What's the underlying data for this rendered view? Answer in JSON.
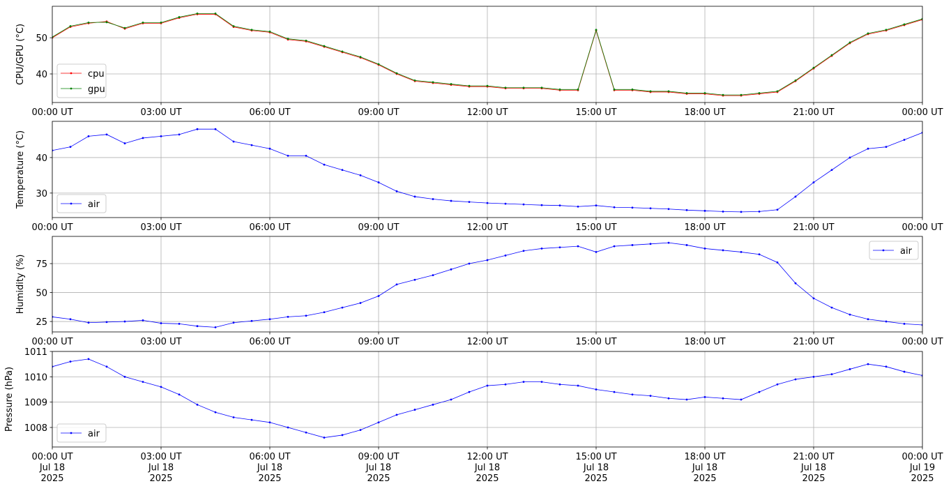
{
  "chart_data": [
    {
      "type": "line",
      "ylabel": "CPU/GPU (°C)",
      "legend": "lower left",
      "grid": true,
      "xlim": [
        0,
        24
      ],
      "ylim": [
        32.1,
        58.7
      ],
      "yticks": [
        40,
        50
      ],
      "xticks": [
        {
          "value": 0,
          "label": "00:00 UT"
        },
        {
          "value": 3,
          "label": "03:00 UT"
        },
        {
          "value": 6,
          "label": "06:00 UT"
        },
        {
          "value": 9,
          "label": "09:00 UT"
        },
        {
          "value": 12,
          "label": "12:00 UT"
        },
        {
          "value": 15,
          "label": "15:00 UT"
        },
        {
          "value": 18,
          "label": "18:00 UT"
        },
        {
          "value": 21,
          "label": "21:00 UT"
        },
        {
          "value": 24,
          "label": "00:00 UT"
        }
      ],
      "x": [
        0,
        0.5,
        1,
        1.5,
        2,
        2.5,
        3,
        3.5,
        4,
        4.5,
        5,
        5.5,
        6,
        6.5,
        7,
        7.5,
        8,
        8.5,
        9,
        9.5,
        10,
        10.5,
        11,
        11.5,
        12,
        12.5,
        13,
        13.5,
        14,
        14.5,
        15,
        15.5,
        16,
        16.5,
        17,
        17.5,
        18,
        18.5,
        19,
        19.5,
        20,
        20.5,
        21,
        21.5,
        22,
        22.5,
        23,
        23.5,
        24
      ],
      "series": [
        {
          "name": "cpu",
          "color": "#ff0000",
          "values": [
            50,
            53,
            54,
            54.5,
            52.5,
            54,
            54,
            55.5,
            56.5,
            56.5,
            53,
            52,
            51.5,
            49.5,
            49,
            47.5,
            46,
            44.5,
            42.5,
            40,
            38,
            37.5,
            37,
            36.5,
            36.5,
            36,
            36,
            36,
            35.5,
            35.5,
            52,
            35.5,
            35.5,
            35,
            35,
            34.5,
            34.5,
            34,
            34,
            34.5,
            35,
            38,
            41.5,
            45,
            48.5,
            51,
            52,
            53.5,
            55
          ]
        },
        {
          "name": "gpu",
          "color": "#008000",
          "values": [
            50.2,
            53.2,
            54.2,
            54.3,
            52.7,
            54.2,
            54.2,
            55.7,
            56.7,
            56.7,
            53.2,
            52.2,
            51.7,
            49.7,
            49.2,
            47.7,
            46.2,
            44.7,
            42.7,
            40.2,
            38.2,
            37.7,
            37.2,
            36.7,
            36.7,
            36.2,
            36.2,
            36.2,
            35.7,
            35.7,
            52.2,
            35.7,
            35.7,
            35.2,
            35.2,
            34.7,
            34.7,
            34.2,
            34.2,
            34.7,
            35.2,
            38.2,
            41.7,
            45.2,
            48.7,
            51.2,
            52.2,
            53.7,
            55.2
          ]
        }
      ]
    },
    {
      "type": "line",
      "ylabel": "Temperature (°C)",
      "legend": "lower left",
      "grid": true,
      "xlim": [
        0,
        24
      ],
      "ylim": [
        23.1,
        50.2
      ],
      "yticks": [
        30,
        40
      ],
      "xticks": [
        {
          "value": 0,
          "label": "00:00 UT"
        },
        {
          "value": 3,
          "label": "03:00 UT"
        },
        {
          "value": 6,
          "label": "06:00 UT"
        },
        {
          "value": 9,
          "label": "09:00 UT"
        },
        {
          "value": 12,
          "label": "12:00 UT"
        },
        {
          "value": 15,
          "label": "15:00 UT"
        },
        {
          "value": 18,
          "label": "18:00 UT"
        },
        {
          "value": 21,
          "label": "21:00 UT"
        },
        {
          "value": 24,
          "label": "00:00 UT"
        }
      ],
      "x": [
        0,
        0.5,
        1,
        1.5,
        2,
        2.5,
        3,
        3.5,
        4,
        4.5,
        5,
        5.5,
        6,
        6.5,
        7,
        7.5,
        8,
        8.5,
        9,
        9.5,
        10,
        10.5,
        11,
        11.5,
        12,
        12.5,
        13,
        13.5,
        14,
        14.5,
        15,
        15.5,
        16,
        16.5,
        17,
        17.5,
        18,
        18.5,
        19,
        19.5,
        20,
        20.5,
        21,
        21.5,
        22,
        22.5,
        23,
        23.5,
        24
      ],
      "series": [
        {
          "name": "air",
          "color": "#0000ff",
          "values": [
            42,
            43,
            46,
            46.5,
            44,
            45.5,
            46,
            46.5,
            48,
            48,
            44.5,
            43.5,
            42.5,
            40.5,
            40.5,
            38,
            36.5,
            35,
            33,
            30.5,
            29,
            28.3,
            27.8,
            27.5,
            27.2,
            27,
            26.8,
            26.6,
            26.5,
            26.2,
            26.5,
            26,
            25.9,
            25.7,
            25.5,
            25.2,
            25,
            24.8,
            24.7,
            24.8,
            25.3,
            29,
            33,
            36.5,
            40,
            42.5,
            43,
            45,
            47
          ]
        }
      ]
    },
    {
      "type": "line",
      "ylabel": "Humidity (%)",
      "legend": "upper right",
      "grid": true,
      "xlim": [
        0,
        24
      ],
      "ylim": [
        16,
        98.5
      ],
      "yticks": [
        25,
        50,
        75
      ],
      "xticks": [
        {
          "value": 0,
          "label": "00:00 UT"
        },
        {
          "value": 3,
          "label": "03:00 UT"
        },
        {
          "value": 6,
          "label": "06:00 UT"
        },
        {
          "value": 9,
          "label": "09:00 UT"
        },
        {
          "value": 12,
          "label": "12:00 UT"
        },
        {
          "value": 15,
          "label": "15:00 UT"
        },
        {
          "value": 18,
          "label": "18:00 UT"
        },
        {
          "value": 21,
          "label": "21:00 UT"
        },
        {
          "value": 24,
          "label": "00:00 UT"
        }
      ],
      "x": [
        0,
        0.5,
        1,
        1.5,
        2,
        2.5,
        3,
        3.5,
        4,
        4.5,
        5,
        5.5,
        6,
        6.5,
        7,
        7.5,
        8,
        8.5,
        9,
        9.5,
        10,
        10.5,
        11,
        11.5,
        12,
        12.5,
        13,
        13.5,
        14,
        14.5,
        15,
        15.5,
        16,
        16.5,
        17,
        17.5,
        18,
        18.5,
        19,
        19.5,
        20,
        20.5,
        21,
        21.5,
        22,
        22.5,
        23,
        23.5,
        24
      ],
      "series": [
        {
          "name": "air",
          "color": "#0000ff",
          "values": [
            29,
            27,
            24,
            24.5,
            25,
            26,
            23.5,
            23,
            21,
            20,
            24,
            25.5,
            27,
            29,
            30,
            33,
            37,
            41,
            47,
            57,
            61,
            65,
            70,
            75,
            78,
            82,
            86,
            88,
            89,
            90,
            85,
            90,
            91,
            92,
            93,
            91,
            88,
            86.5,
            85,
            83,
            76,
            58,
            45,
            37,
            31,
            27,
            25,
            23,
            22
          ]
        }
      ]
    },
    {
      "type": "line",
      "ylabel": "Pressure (hPa)",
      "legend": "lower left",
      "grid": true,
      "xlim": [
        0,
        24
      ],
      "ylim": [
        1007.23,
        1011
      ],
      "yticks": [
        1008,
        1009,
        1010,
        1011
      ],
      "xticks": [
        {
          "value": 0,
          "label": "00:00 UT\nJul 18\n2025"
        },
        {
          "value": 3,
          "label": "03:00 UT\nJul 18\n2025"
        },
        {
          "value": 6,
          "label": "06:00 UT\nJul 18\n2025"
        },
        {
          "value": 9,
          "label": "09:00 UT\nJul 18\n2025"
        },
        {
          "value": 12,
          "label": "12:00 UT\nJul 18\n2025"
        },
        {
          "value": 15,
          "label": "15:00 UT\nJul 18\n2025"
        },
        {
          "value": 18,
          "label": "18:00 UT\nJul 18\n2025"
        },
        {
          "value": 21,
          "label": "21:00 UT\nJul 18\n2025"
        },
        {
          "value": 24,
          "label": "00:00 UT\nJul 19\n2025"
        }
      ],
      "x": [
        0,
        0.5,
        1,
        1.5,
        2,
        2.5,
        3,
        3.5,
        4,
        4.5,
        5,
        5.5,
        6,
        6.5,
        7,
        7.5,
        8,
        8.5,
        9,
        9.5,
        10,
        10.5,
        11,
        11.5,
        12,
        12.5,
        13,
        13.5,
        14,
        14.5,
        15,
        15.5,
        16,
        16.5,
        17,
        17.5,
        18,
        18.5,
        19,
        19.5,
        20,
        20.5,
        21,
        21.5,
        22,
        22.5,
        23,
        23.5,
        24
      ],
      "series": [
        {
          "name": "air",
          "color": "#0000ff",
          "values": [
            1010.4,
            1010.6,
            1010.7,
            1010.4,
            1010,
            1009.8,
            1009.6,
            1009.3,
            1008.9,
            1008.6,
            1008.4,
            1008.3,
            1008.2,
            1008,
            1007.8,
            1007.6,
            1007.7,
            1007.9,
            1008.2,
            1008.5,
            1008.7,
            1008.9,
            1009.1,
            1009.4,
            1009.65,
            1009.7,
            1009.8,
            1009.8,
            1009.7,
            1009.65,
            1009.5,
            1009.4,
            1009.3,
            1009.25,
            1009.15,
            1009.1,
            1009.2,
            1009.15,
            1009.1,
            1009.4,
            1009.7,
            1009.9,
            1010,
            1010.1,
            1010.3,
            1010.5,
            1010.4,
            1010.2,
            1010.05
          ]
        }
      ]
    }
  ]
}
